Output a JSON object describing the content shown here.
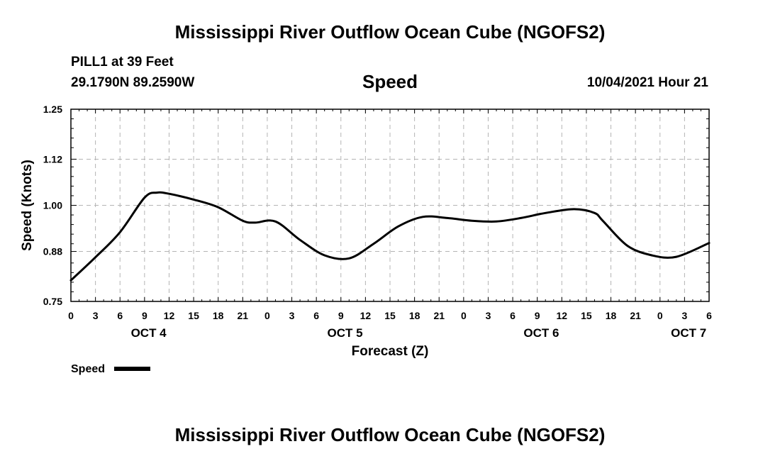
{
  "header": {
    "title": "Mississippi River Outflow Ocean Cube (NGOFS2)",
    "station": "PILL1 at 39 Feet",
    "coordinates": "29.1790N  89.2590W",
    "timestamp": "10/04/2021 Hour 21"
  },
  "footer": {
    "title": "Mississippi River Outflow Ocean Cube (NGOFS2)"
  },
  "chart_data": {
    "type": "line",
    "title": "Speed",
    "xlabel": "Forecast (Z)",
    "ylabel": "Speed (Knots)",
    "xlim": [
      0,
      78
    ],
    "ylim": [
      0.75,
      1.25
    ],
    "yticks": [
      0.75,
      0.88,
      1.0,
      1.12,
      1.25
    ],
    "ytick_labels": [
      "0.75",
      "0.88",
      "1.00",
      "1.12",
      "1.25"
    ],
    "xticks": [
      0,
      3,
      6,
      9,
      12,
      15,
      18,
      21,
      24,
      27,
      30,
      33,
      36,
      39,
      42,
      45,
      48,
      51,
      54,
      57,
      60,
      63,
      66,
      69,
      72,
      75,
      78
    ],
    "xtick_labels": [
      "0",
      "3",
      "6",
      "9",
      "12",
      "15",
      "18",
      "21",
      "0",
      "3",
      "6",
      "9",
      "12",
      "15",
      "18",
      "21",
      "0",
      "3",
      "6",
      "9",
      "12",
      "15",
      "18",
      "21",
      "0",
      "3",
      "6"
    ],
    "day_labels": [
      {
        "label": "OCT 4",
        "x": 9.5
      },
      {
        "label": "OCT 5",
        "x": 33.5
      },
      {
        "label": "OCT 6",
        "x": 57.5
      },
      {
        "label": "OCT 7",
        "x": 75.5
      }
    ],
    "grid": true,
    "legend": {
      "position": "bottom-left",
      "label": "Speed"
    },
    "series": [
      {
        "name": "Speed",
        "x": [
          0,
          3,
          6,
          9,
          10.5,
          12,
          15,
          18,
          21,
          22.5,
          25,
          28,
          31,
          34,
          37,
          40,
          43,
          46,
          49,
          52,
          55,
          58,
          61.5,
          64,
          65,
          68,
          71,
          74,
          78
        ],
        "y": [
          0.805,
          0.865,
          0.93,
          1.02,
          1.033,
          1.03,
          1.015,
          0.995,
          0.96,
          0.955,
          0.958,
          0.91,
          0.87,
          0.862,
          0.9,
          0.945,
          0.97,
          0.967,
          0.96,
          0.958,
          0.967,
          0.98,
          0.99,
          0.98,
          0.96,
          0.895,
          0.87,
          0.866,
          0.902
        ]
      }
    ]
  }
}
